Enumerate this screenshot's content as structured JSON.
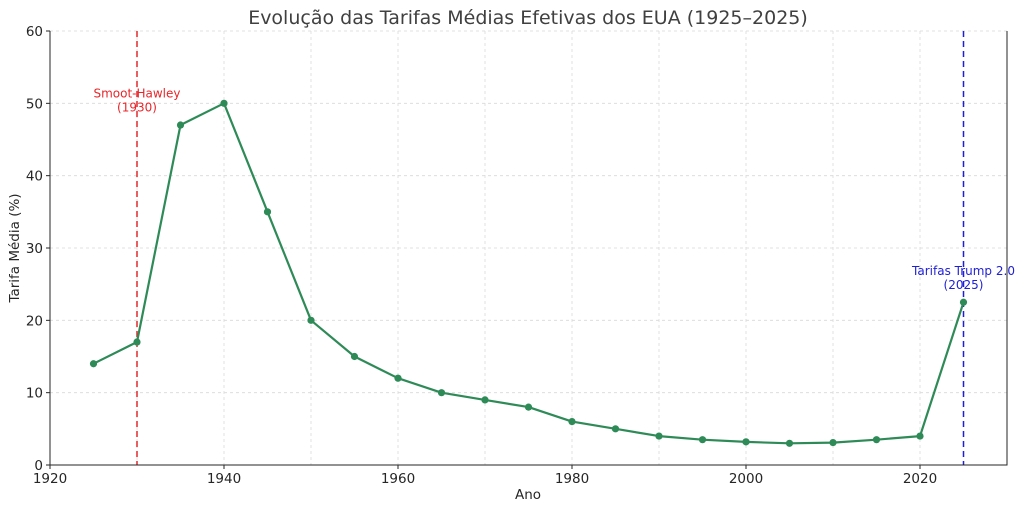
{
  "chart_data": {
    "type": "line",
    "title": "Evolução das Tarifas Médias Efetivas dos EUA (1925–2025)",
    "xlabel": "Ano",
    "ylabel": "Tarifa Média (%)",
    "xlim": [
      1920,
      2030
    ],
    "ylim": [
      0,
      60
    ],
    "xticks": [
      1920,
      1940,
      1960,
      1980,
      2000,
      2020
    ],
    "yticks": [
      0,
      10,
      20,
      30,
      40,
      50,
      60
    ],
    "grid": true,
    "series": [
      {
        "color": "#2e8b57",
        "x": [
          1925,
          1930,
          1935,
          1940,
          1945,
          1950,
          1955,
          1960,
          1965,
          1970,
          1975,
          1980,
          1985,
          1990,
          1995,
          2000,
          2005,
          2010,
          2015,
          2020,
          2025
        ],
        "y": [
          14,
          17,
          47,
          50,
          35,
          20,
          15,
          12,
          10,
          9,
          8,
          6,
          5,
          4,
          3.5,
          3.2,
          3.0,
          3.1,
          3.5,
          4,
          22.5
        ]
      }
    ],
    "annotations": [
      {
        "x": 1930,
        "line1": "Smoot-Hawley",
        "line2": "(1930)",
        "color": "#e8262a",
        "label_y": 49
      },
      {
        "x": 2025,
        "line1": "Tarifas Trump 2.0",
        "line2": "(2025)",
        "color": "#1f1fd6",
        "label_y": 24.5
      }
    ]
  }
}
